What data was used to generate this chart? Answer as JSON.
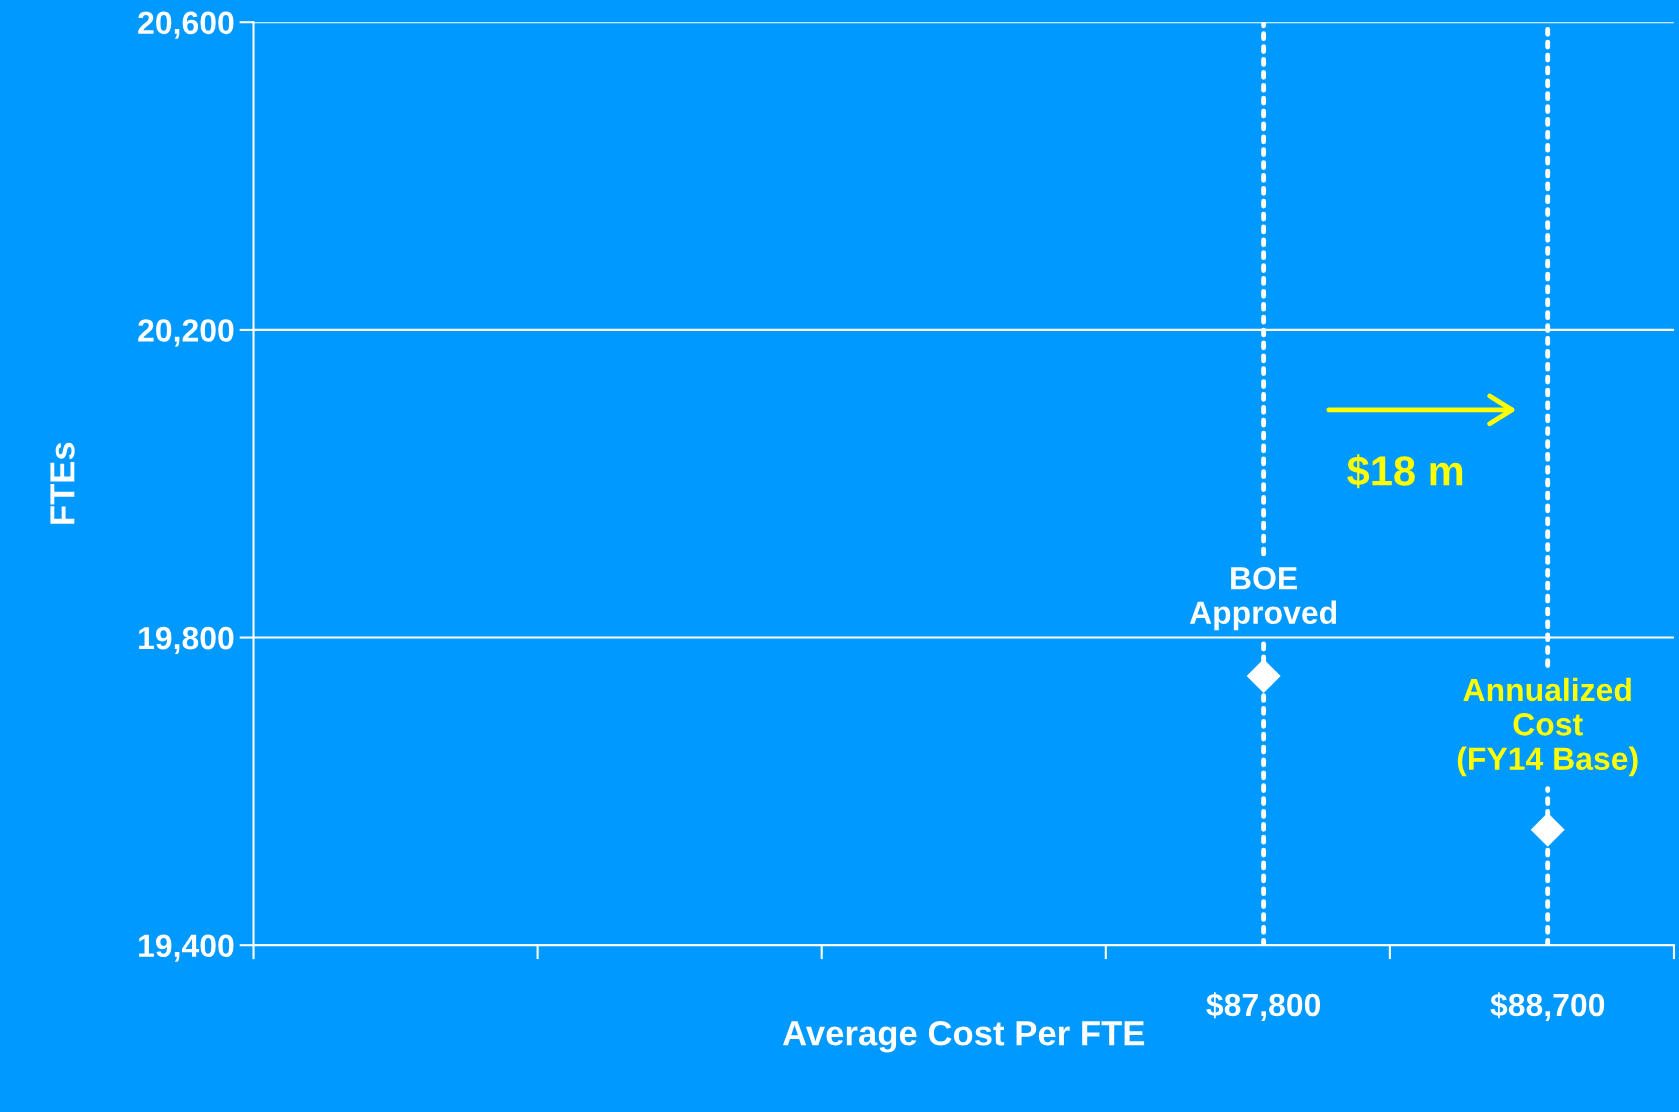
{
  "chart_data": {
    "type": "scatter",
    "xlabel": "Average Cost Per FTE",
    "ylabel": "FTEs",
    "xlim": [
      84600,
      89100
    ],
    "xticks": [
      {
        "value": 84600,
        "label": null
      },
      {
        "value": 85500,
        "label": null
      },
      {
        "value": 86400,
        "label": null
      },
      {
        "value": 87300,
        "label": null
      },
      {
        "value": 88200,
        "label": null
      },
      {
        "value": 89100,
        "label": null
      }
    ],
    "ylim": [
      19400,
      20600
    ],
    "yticks": [
      {
        "value": 19400,
        "label": "19,400"
      },
      {
        "value": 19800,
        "label": "19,800"
      },
      {
        "value": 20200,
        "label": "20,200"
      },
      {
        "value": 20600,
        "label": "20,600"
      }
    ],
    "grid": "y",
    "marker": "diamond",
    "series": [
      {
        "color": "#ffffff",
        "x": [
          87800,
          88700
        ],
        "values": [
          19750,
          19550
        ]
      }
    ],
    "ref_lines": [
      {
        "axis": "x",
        "value": 87800,
        "label": "$87,800",
        "color": "#ffffff",
        "line_style": "dotted"
      },
      {
        "axis": "x",
        "value": 88700,
        "label": "$88,700",
        "color": "#ffffff",
        "line_style": "dotted"
      }
    ],
    "annotations": [
      {
        "text": "BOE\nApproved",
        "x": 87800,
        "y": 19750
      },
      {
        "text": "Annualized\nCost\n(FY14 Base)",
        "x": 88700,
        "y": 19550
      },
      "$18 m"
    ]
  }
}
